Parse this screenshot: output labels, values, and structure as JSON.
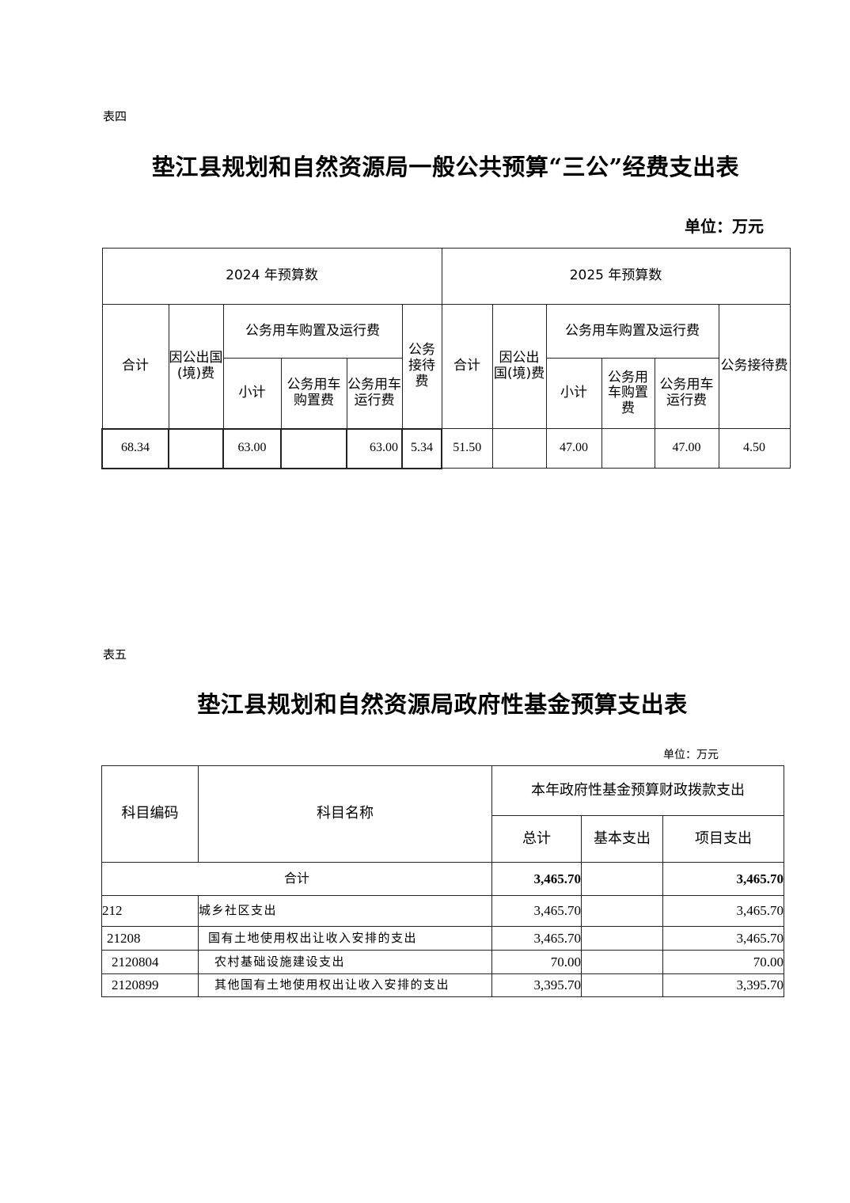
{
  "table4": {
    "label": "表四",
    "title": "垫江县规划和自然资源局一般公共预算“三公”经费支出表",
    "unit": "单位：万元",
    "year_2024": "2024 年预算数",
    "year_2025": "2025 年预算数",
    "headers": {
      "total": "合计",
      "abroad": "因公出国(境)费",
      "vehicle": "公务用车购置及运行费",
      "subtotal": "小计",
      "purchase": "公务用车购置费",
      "operation": "公务用车运行费",
      "reception": "公务接待费"
    },
    "values_2024": {
      "total": "68.34",
      "abroad": "",
      "subtotal": "63.00",
      "purchase": "",
      "operation": "63.00",
      "reception": "5.34"
    },
    "values_2025": {
      "total": "51.50",
      "abroad": "",
      "subtotal": "47.00",
      "purchase": "",
      "operation": "47.00",
      "reception": "4.50"
    }
  },
  "table5": {
    "label": "表五",
    "title": "垫江县规划和自然资源局政府性基金预算支出表",
    "unit": "单位：万元",
    "headers": {
      "code": "科目编码",
      "name": "科目名称",
      "group": "本年政府性基金预算财政拨款支出",
      "total": "总计",
      "basic": "基本支出",
      "project": "项目支出"
    },
    "total_row": {
      "label": "合计",
      "total": "3,465.70",
      "basic": "",
      "project": "3,465.70"
    },
    "rows": [
      {
        "code": "212",
        "name": "城乡社区支出",
        "total": "3,465.70",
        "basic": "",
        "project": "3,465.70"
      },
      {
        "code": "21208",
        "name": "国有土地使用权出让收入安排的支出",
        "total": "3,465.70",
        "basic": "",
        "project": "3,465.70"
      },
      {
        "code": "2120804",
        "name": "农村基础设施建设支出",
        "total": "70.00",
        "basic": "",
        "project": "70.00"
      },
      {
        "code": "2120899",
        "name": "其他国有土地使用权出让收入安排的支出",
        "total": "3,395.70",
        "basic": "",
        "project": "3,395.70"
      }
    ]
  }
}
